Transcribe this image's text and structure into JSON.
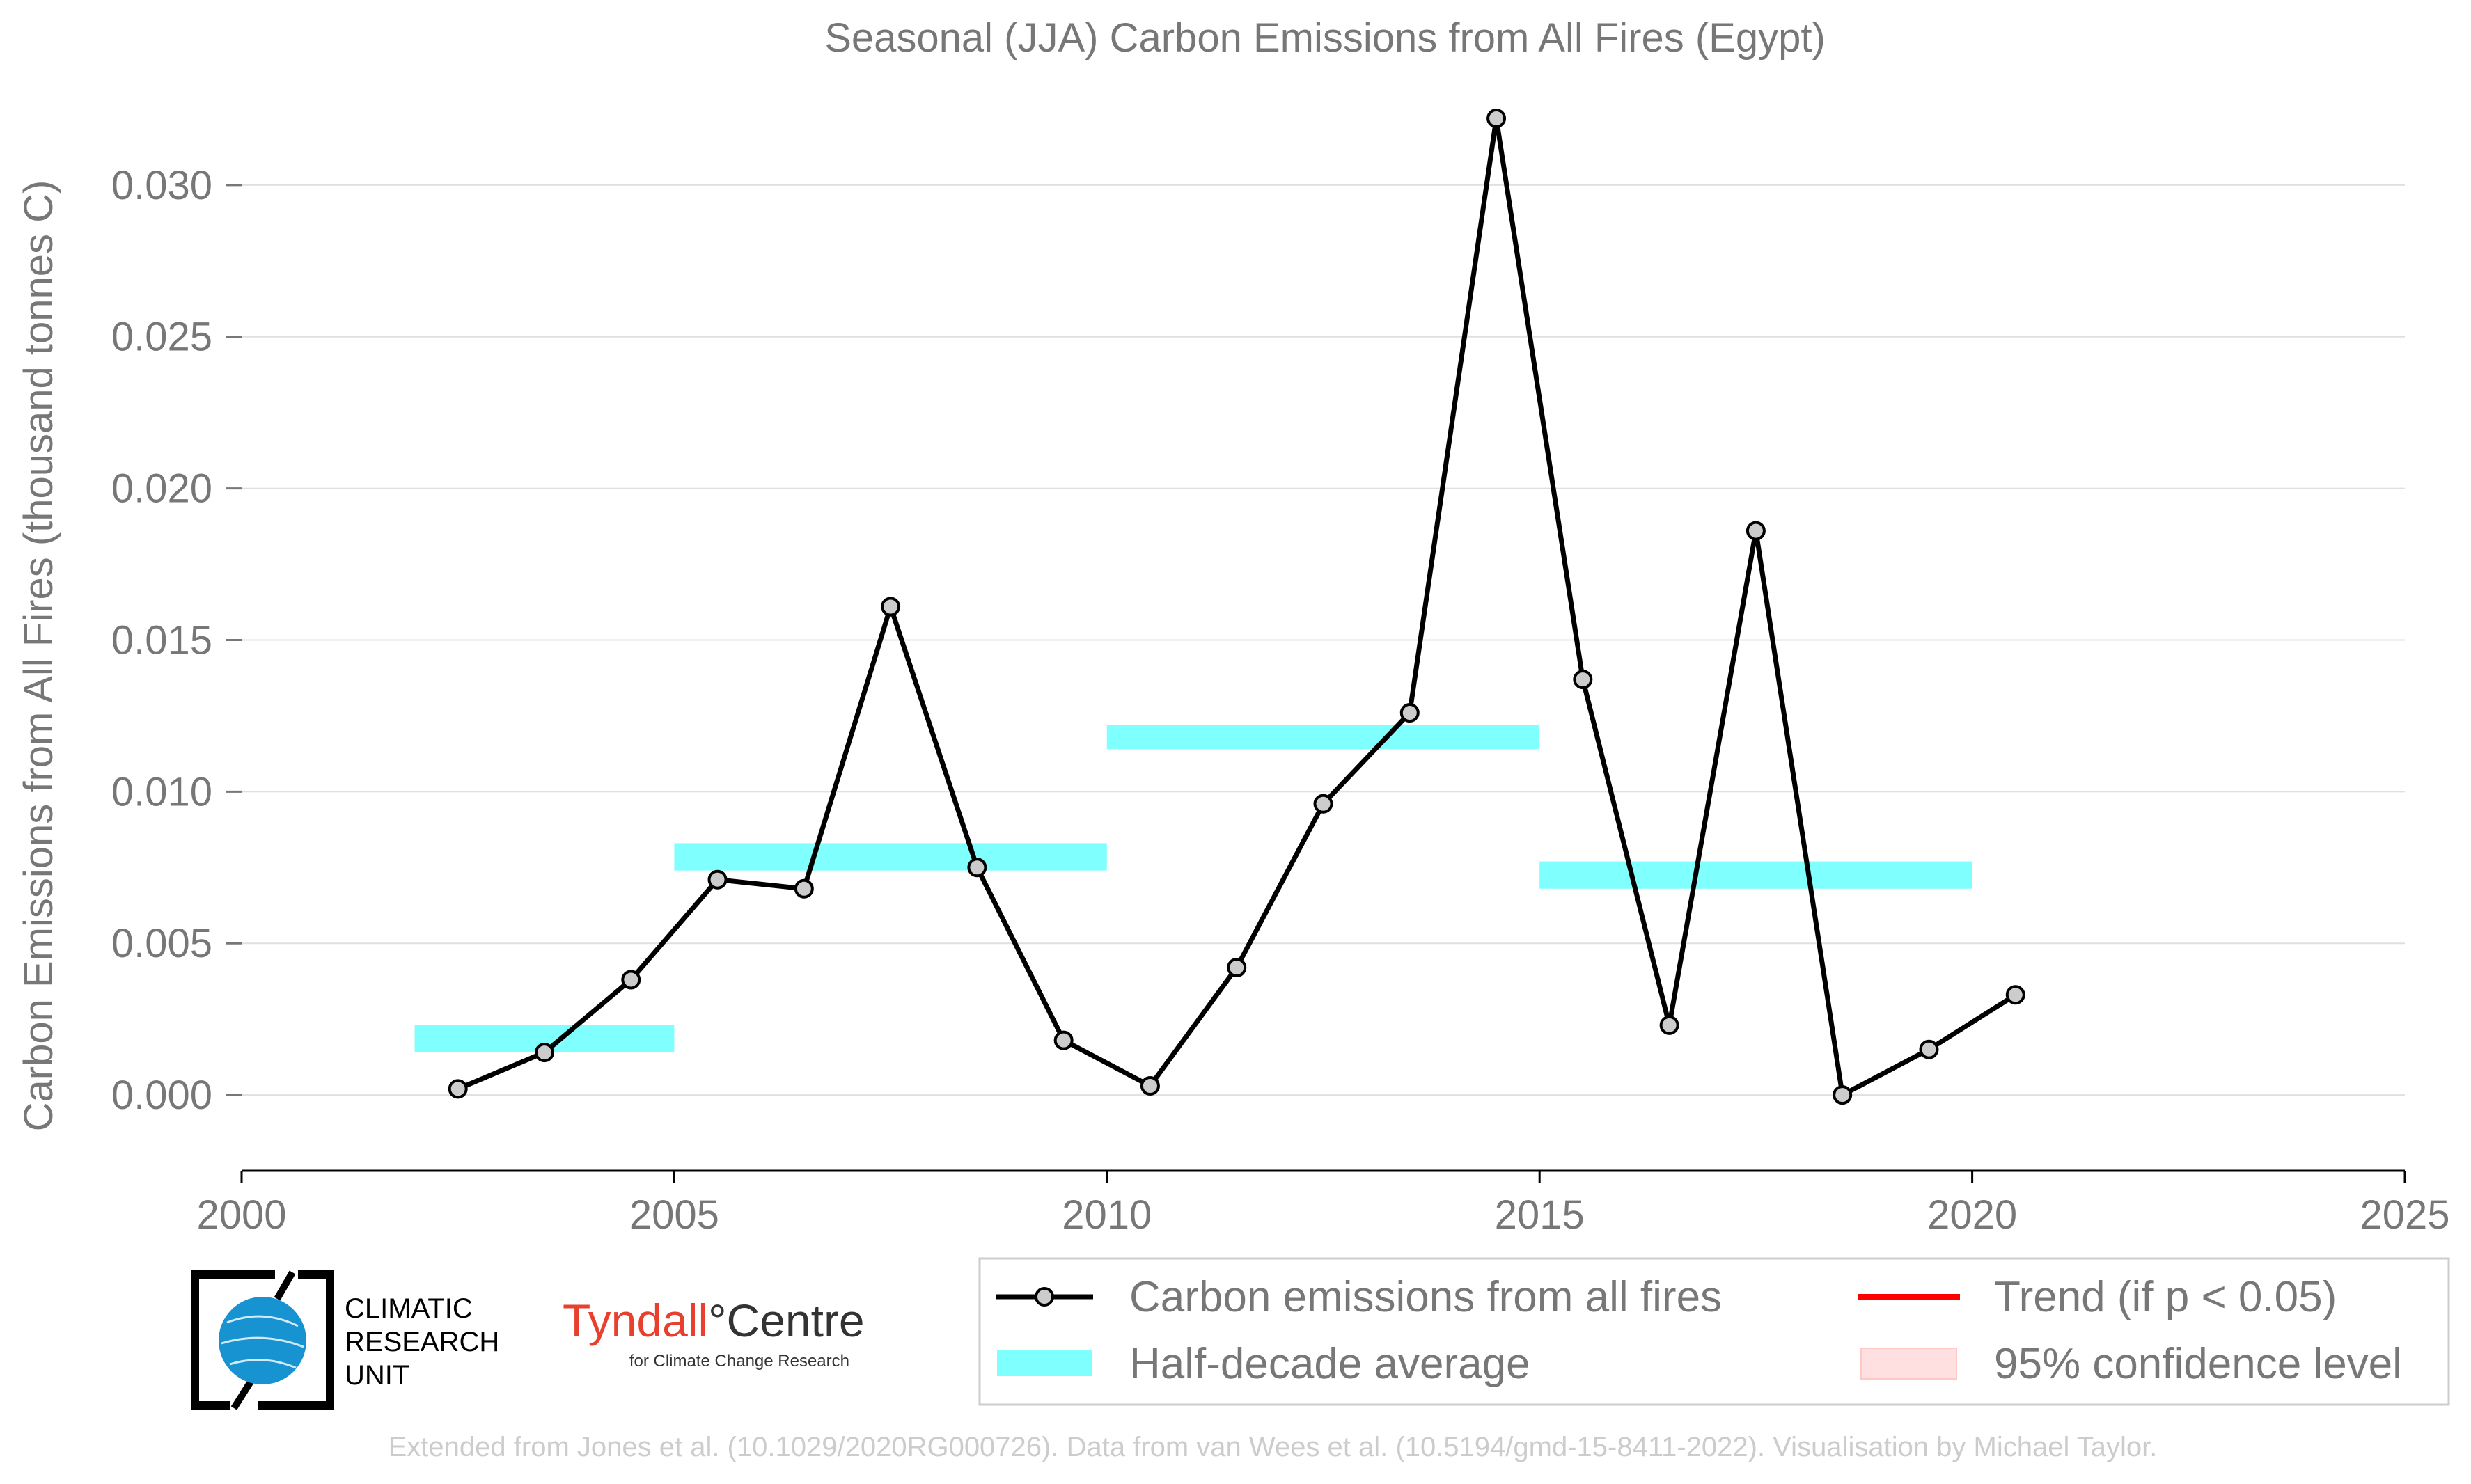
{
  "chart_data": {
    "type": "line",
    "title": "Seasonal (JJA) Carbon Emissions from All Fires (Egypt)",
    "xlabel": "",
    "ylabel": "Carbon Emissions from All Fires (thousand tonnes C)",
    "xlim": [
      2000,
      2025
    ],
    "ylim": [
      -0.0025,
      0.0322
    ],
    "x_ticks": [
      2000,
      2005,
      2010,
      2015,
      2020,
      2025
    ],
    "y_ticks": [
      0.0,
      0.005,
      0.01,
      0.015,
      0.02,
      0.025,
      0.03
    ],
    "x_tick_labels": [
      "2000",
      "2005",
      "2010",
      "2015",
      "2020",
      "2025"
    ],
    "y_tick_labels": [
      "0.000",
      "0.005",
      "0.010",
      "0.015",
      "0.020",
      "0.025",
      "0.030"
    ],
    "grid": "horizontal",
    "legend_position": "bottom-right",
    "series": [
      {
        "name": "Carbon emissions from all fires",
        "color": "#000000",
        "marker_fill": "#cccccc",
        "points": [
          {
            "x": 2002.5,
            "y": 0.0002
          },
          {
            "x": 2003.5,
            "y": 0.0014
          },
          {
            "x": 2004.5,
            "y": 0.0038
          },
          {
            "x": 2005.5,
            "y": 0.0071
          },
          {
            "x": 2006.5,
            "y": 0.0068
          },
          {
            "x": 2007.5,
            "y": 0.0161
          },
          {
            "x": 2008.5,
            "y": 0.0075
          },
          {
            "x": 2009.5,
            "y": 0.0018
          },
          {
            "x": 2010.5,
            "y": 0.0003
          },
          {
            "x": 2011.5,
            "y": 0.0042
          },
          {
            "x": 2012.5,
            "y": 0.0096
          },
          {
            "x": 2013.5,
            "y": 0.0126
          },
          {
            "x": 2014.5,
            "y": 0.0322
          },
          {
            "x": 2015.5,
            "y": 0.0137
          },
          {
            "x": 2016.5,
            "y": 0.0023
          },
          {
            "x": 2017.5,
            "y": 0.0186
          },
          {
            "x": 2018.5,
            "y": 0.0
          },
          {
            "x": 2019.5,
            "y": 0.0015
          },
          {
            "x": 2020.5,
            "y": 0.0033
          }
        ]
      }
    ],
    "half_decade_averages": {
      "name": "Half-decade average",
      "color": "#80ffff",
      "bars": [
        {
          "x_start": 2002,
          "x_end": 2005,
          "y_low": 0.0014,
          "y_high": 0.0023
        },
        {
          "x_start": 2005,
          "x_end": 2010,
          "y_low": 0.0074,
          "y_high": 0.0083
        },
        {
          "x_start": 2010,
          "x_end": 2015,
          "y_low": 0.0114,
          "y_high": 0.0122
        },
        {
          "x_start": 2015,
          "x_end": 2020,
          "y_low": 0.0068,
          "y_high": 0.0077
        }
      ]
    },
    "legend": [
      {
        "label": "Carbon emissions from all fires",
        "style": "line-marker",
        "color": "#000000"
      },
      {
        "label": "Trend (if p < 0.05)",
        "style": "line",
        "color": "#ff0000"
      },
      {
        "label": "Half-decade average",
        "style": "patch",
        "color": "#80ffff"
      },
      {
        "label": "95% confidence level",
        "style": "patch",
        "color": "#ffe0e0"
      }
    ]
  },
  "logos": {
    "cru_line1": "CLIMATIC",
    "cru_line2": "RESEARCH",
    "cru_line3": "UNIT",
    "tyndall_main": "Tyndall",
    "tyndall_degree": "°",
    "tyndall_centre": "Centre",
    "tyndall_sub": "for Climate Change Research"
  },
  "footer": "Extended from Jones et al. (10.1029/2020RG000726). Data from van Wees et al. (10.5194/gmd-15-8411-2022). Visualisation by Michael Taylor."
}
